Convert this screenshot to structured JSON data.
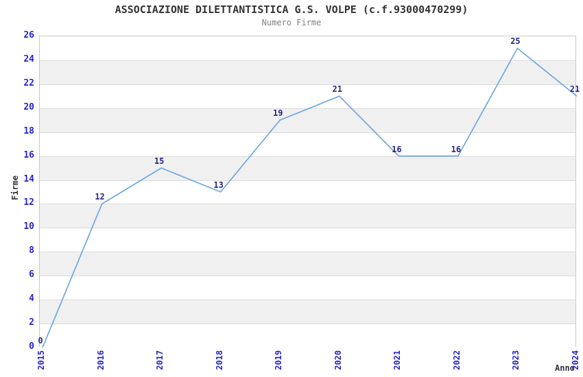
{
  "header": {
    "title": "ASSOCIAZIONE DILETTANTISTICA G.S. VOLPE (c.f.93000470299)",
    "subtitle": "Numero Firme"
  },
  "chart_data": {
    "type": "line",
    "title": "ASSOCIAZIONE DILETTANTISTICA G.S. VOLPE (c.f.93000470299)",
    "subtitle": "Numero Firme",
    "xlabel": "Anno",
    "ylabel": "Firme",
    "categories": [
      "2015",
      "2016",
      "2017",
      "2018",
      "2019",
      "2020",
      "2021",
      "2022",
      "2023",
      "2024"
    ],
    "series": [
      {
        "name": "Numero Firme",
        "values": [
          0,
          12,
          15,
          13,
          19,
          21,
          16,
          16,
          25,
          21
        ]
      }
    ],
    "data_labels_visible": true,
    "markers": "none",
    "legend_position": "none",
    "ylim": [
      0,
      26
    ],
    "ytick_step": 2,
    "grid": "horizontal-stripes",
    "colors": {
      "line": "#6FA8E0",
      "data_label": "#26267E",
      "tick_label": "#2525CB",
      "axis_title": "#333333",
      "title": "#333333",
      "subtitle": "#808080",
      "stripe": "#F0F0F0",
      "gridline": "#DCDCDC",
      "plot_border": "#C8C8C8",
      "plot_background": "#FFFFFF"
    }
  }
}
